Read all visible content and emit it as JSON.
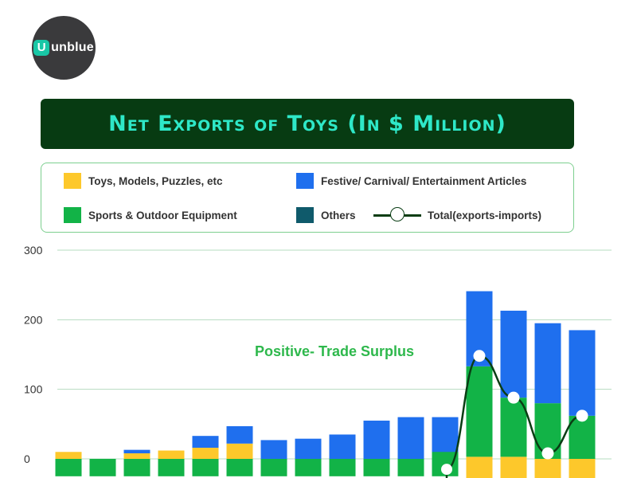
{
  "logo": {
    "mark": "U",
    "text": "unblue"
  },
  "title": "Net Exports of Toys (In $ Million)",
  "legend": [
    {
      "key": "toys",
      "label": "Toys, Models, Puzzles, etc",
      "color": "#fdc82b"
    },
    {
      "key": "festive",
      "label": "Festive/ Carnival/ Entertainment Articles",
      "color": "#1f6fee"
    },
    {
      "key": "sports",
      "label": "Sports & Outdoor Equipment",
      "color": "#12b347"
    },
    {
      "key": "others",
      "label": "Others",
      "color": "#0f5a6b"
    },
    {
      "key": "total",
      "label": "Total(exports-imports)",
      "color": "#0a3d14"
    }
  ],
  "chart_data": {
    "type": "bar",
    "stacked": true,
    "categories": [
      "",
      "",
      "",
      "",
      "",
      "",
      "",
      "",
      "",
      "",
      "",
      "",
      "",
      "",
      "",
      ""
    ],
    "yticks": [
      0,
      100,
      200,
      300
    ],
    "ylim": [
      -25,
      300
    ],
    "grid": true,
    "annotation": "Positive- Trade Surplus",
    "annotation_color": "#2eb84c",
    "series_pos": [
      {
        "name": "Sports & Outdoor Equipment",
        "color": "#12b347",
        "values": [
          0,
          0,
          0,
          0,
          0,
          0,
          0,
          0,
          0,
          0,
          0,
          0,
          0,
          0,
          0,
          0
        ]
      },
      {
        "name": "Toys, Models, Puzzles, etc",
        "color": "#fdc82b",
        "values": [
          10,
          0,
          8,
          12,
          16,
          22,
          0,
          0,
          0,
          0,
          0,
          0,
          0,
          0,
          0,
          0
        ]
      },
      {
        "name": "Festive/ Carnival/ Entertainment Articles",
        "color": "#1f6fee",
        "values": [
          0,
          0,
          5,
          0,
          17,
          25,
          27,
          29,
          35,
          55,
          60,
          60,
          0,
          0,
          0,
          0
        ]
      }
    ],
    "series_neg": [
      {
        "name": "Sports & Outdoor Equipment",
        "color": "#12b347",
        "values": [
          -25,
          -25,
          -25,
          -25,
          -25,
          -25,
          -25,
          -25,
          -25,
          -25,
          -25,
          -25,
          0,
          0,
          0,
          0
        ]
      }
    ],
    "stack_segments": [
      {
        "color": "#fdc82b",
        "values": [
          0,
          0,
          0,
          0,
          0,
          0,
          0,
          0,
          0,
          0,
          0,
          0,
          3,
          3,
          0,
          0
        ]
      },
      {
        "color": "#12b347",
        "values": [
          0,
          0,
          0,
          0,
          0,
          0,
          0,
          0,
          0,
          0,
          0,
          10,
          130,
          85,
          80,
          62
        ]
      },
      {
        "color": "#1f6fee",
        "values": [
          0,
          0,
          0,
          0,
          0,
          0,
          0,
          0,
          0,
          0,
          0,
          0,
          108,
          125,
          115,
          123
        ]
      }
    ],
    "total_line": {
      "x_index": [
        12,
        13,
        14,
        15
      ],
      "values": [
        148,
        88,
        8,
        62
      ],
      "partial_point_value": -15
    }
  }
}
